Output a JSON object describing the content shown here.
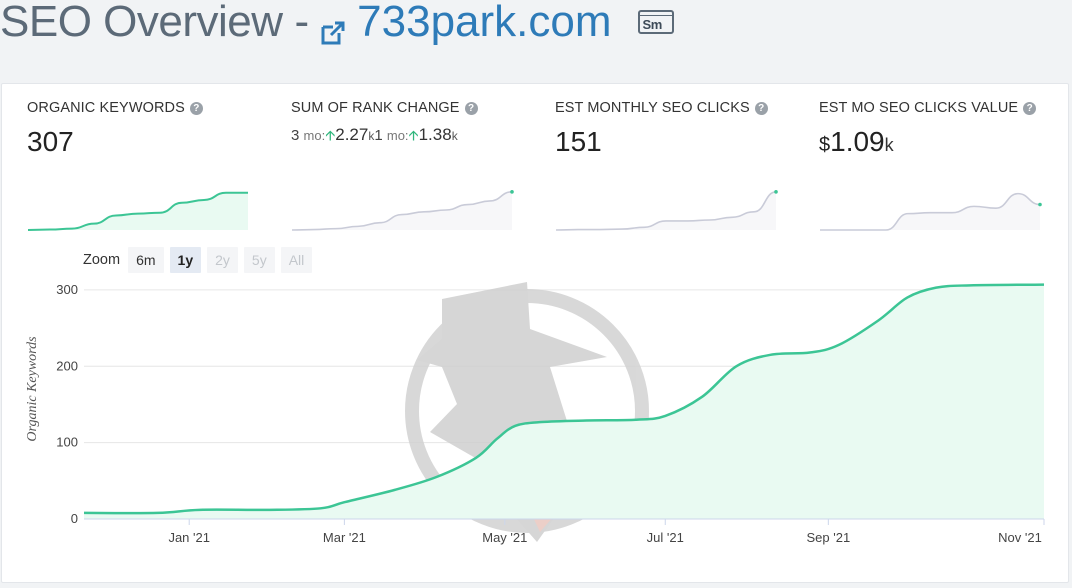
{
  "header": {
    "title": "SEO Overview",
    "separator": "-",
    "domain": "733park.com",
    "sm_icon_label": "Sm"
  },
  "metrics": [
    {
      "label": "ORGANIC KEYWORDS",
      "value": "307",
      "help": "?"
    },
    {
      "label": "SUM OF RANK CHANGE",
      "help": "?",
      "rank3": {
        "prefix": "3",
        "suffix": "mo:",
        "value": "2.27",
        "unit": "k"
      },
      "rank1": {
        "prefix": "1",
        "suffix": "mo:",
        "value": "1.38",
        "unit": "k"
      }
    },
    {
      "label": "EST MONTHLY SEO CLICKS",
      "value": "151",
      "help": "?"
    },
    {
      "label": "EST MO SEO CLICKS VALUE",
      "currency": "$",
      "value": "1.09",
      "unit": "k",
      "help": "?"
    }
  ],
  "zoom": {
    "label": "Zoom",
    "options": [
      {
        "label": "6m",
        "state": "enabled"
      },
      {
        "label": "1y",
        "state": "active"
      },
      {
        "label": "2y",
        "state": "disabled"
      },
      {
        "label": "5y",
        "state": "disabled"
      },
      {
        "label": "All",
        "state": "disabled"
      }
    ]
  },
  "colors": {
    "accent_green": "#3cc595",
    "area_fill": "#e9faf2",
    "gray_line": "#c9cbd8",
    "gray_fill": "#f7f7f9",
    "link_blue": "#2e7bb8"
  },
  "chart_data": {
    "type": "area",
    "ylabel": "Organic Keywords",
    "ylim": [
      0,
      300
    ],
    "yticks": [
      0,
      100,
      200,
      300
    ],
    "xticks": [
      "Jan '21",
      "Mar '21",
      "May '21",
      "Jul '21",
      "Sep '21",
      "Nov '21"
    ],
    "grid": true,
    "series": [
      {
        "name": "",
        "points": [
          [
            "2020-11-22",
            8
          ],
          [
            "2020-12-20",
            8
          ],
          [
            "2021-01-05",
            12
          ],
          [
            "2021-01-31",
            12
          ],
          [
            "2021-02-20",
            14
          ],
          [
            "2021-03-01",
            22
          ],
          [
            "2021-03-20",
            38
          ],
          [
            "2021-04-05",
            55
          ],
          [
            "2021-04-20",
            80
          ],
          [
            "2021-04-28",
            105
          ],
          [
            "2021-05-05",
            122
          ],
          [
            "2021-05-15",
            127
          ],
          [
            "2021-06-01",
            129
          ],
          [
            "2021-06-20",
            130
          ],
          [
            "2021-07-01",
            135
          ],
          [
            "2021-07-15",
            160
          ],
          [
            "2021-07-28",
            200
          ],
          [
            "2021-08-10",
            215
          ],
          [
            "2021-08-25",
            218
          ],
          [
            "2021-09-05",
            228
          ],
          [
            "2021-09-20",
            260
          ],
          [
            "2021-10-01",
            290
          ],
          [
            "2021-10-12",
            303
          ],
          [
            "2021-10-25",
            306
          ],
          [
            "2021-11-22",
            307
          ]
        ]
      }
    ]
  },
  "sparklines": [
    {
      "style": "green",
      "values": [
        0,
        0.5,
        1.5,
        7,
        16,
        18,
        19,
        30,
        33,
        41,
        41
      ]
    },
    {
      "style": "gray",
      "values": [
        0,
        0.5,
        1.5,
        4,
        8,
        17,
        20,
        22,
        28,
        32,
        42
      ]
    },
    {
      "style": "gray",
      "values": [
        0,
        0.5,
        0.5,
        1,
        3,
        10,
        10,
        11,
        14,
        20,
        42
      ]
    },
    {
      "style": "gray",
      "values": [
        0,
        0,
        0,
        0,
        18,
        19,
        19,
        26,
        24,
        40,
        28
      ]
    }
  ]
}
